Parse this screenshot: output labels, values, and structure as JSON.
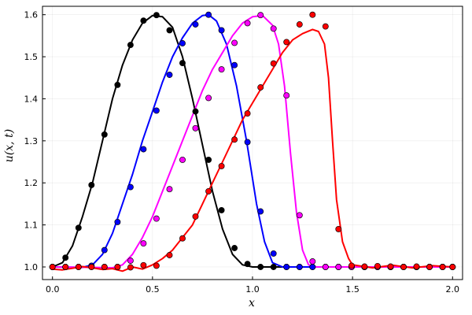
{
  "chart_data": {
    "type": "line",
    "title": "",
    "xlabel": "x",
    "ylabel": "u(x, t)",
    "xlim": [
      -0.05,
      2.05
    ],
    "ylim": [
      0.97,
      1.62
    ],
    "xticks": [
      0.0,
      0.5,
      1.0,
      1.5,
      2.0
    ],
    "xtick_labels": [
      "0.0",
      "0.5",
      "1.0",
      "1.5",
      "2.0"
    ],
    "yticks": [
      1.0,
      1.1,
      1.2,
      1.3,
      1.4,
      1.5,
      1.6
    ],
    "ytick_labels": [
      "1.0",
      "1.1",
      "1.2",
      "1.3",
      "1.4",
      "1.5",
      "1.6"
    ],
    "grid": true,
    "legend": "none",
    "series": [
      {
        "color": "#000000",
        "line": [
          [
            0.0,
            1.0
          ],
          [
            0.05,
            1.01
          ],
          [
            0.1,
            1.05
          ],
          [
            0.15,
            1.12
          ],
          [
            0.2,
            1.2
          ],
          [
            0.25,
            1.3
          ],
          [
            0.3,
            1.4
          ],
          [
            0.35,
            1.48
          ],
          [
            0.4,
            1.54
          ],
          [
            0.45,
            1.58
          ],
          [
            0.5,
            1.598
          ],
          [
            0.55,
            1.595
          ],
          [
            0.6,
            1.57
          ],
          [
            0.65,
            1.5
          ],
          [
            0.7,
            1.4
          ],
          [
            0.75,
            1.29
          ],
          [
            0.8,
            1.18
          ],
          [
            0.85,
            1.09
          ],
          [
            0.9,
            1.03
          ],
          [
            0.95,
            1.005
          ],
          [
            1.0,
            1.0
          ],
          [
            2.0,
            1.0
          ]
        ],
        "markers": [
          [
            0.0,
            1.0
          ],
          [
            0.065,
            1.022
          ],
          [
            0.13,
            1.093
          ],
          [
            0.195,
            1.195
          ],
          [
            0.26,
            1.315
          ],
          [
            0.325,
            1.433
          ],
          [
            0.39,
            1.528
          ],
          [
            0.455,
            1.586
          ],
          [
            0.52,
            1.599
          ],
          [
            0.585,
            1.563
          ],
          [
            0.65,
            1.485
          ],
          [
            0.715,
            1.37
          ],
          [
            0.78,
            1.255
          ],
          [
            0.845,
            1.135
          ],
          [
            0.91,
            1.045
          ],
          [
            0.975,
            1.007
          ],
          [
            1.04,
            1.0
          ],
          [
            1.105,
            1.0
          ],
          [
            1.17,
            1.0
          ],
          [
            1.235,
            1.0
          ],
          [
            1.3,
            1.0
          ],
          [
            1.365,
            1.0
          ],
          [
            1.43,
            1.0
          ],
          [
            1.495,
            1.0
          ],
          [
            1.56,
            1.0
          ],
          [
            1.625,
            1.0
          ],
          [
            1.69,
            1.0
          ],
          [
            1.755,
            1.0
          ],
          [
            1.82,
            1.0
          ],
          [
            1.885,
            1.0
          ],
          [
            1.95,
            1.0
          ],
          [
            2.0,
            1.0
          ]
        ]
      },
      {
        "color": "#0000ff",
        "line": [
          [
            0.0,
            1.0
          ],
          [
            0.15,
            0.999
          ],
          [
            0.2,
            1.005
          ],
          [
            0.25,
            1.03
          ],
          [
            0.3,
            1.08
          ],
          [
            0.35,
            1.15
          ],
          [
            0.4,
            1.22
          ],
          [
            0.45,
            1.3
          ],
          [
            0.5,
            1.37
          ],
          [
            0.55,
            1.44
          ],
          [
            0.6,
            1.5
          ],
          [
            0.65,
            1.545
          ],
          [
            0.7,
            1.58
          ],
          [
            0.75,
            1.598
          ],
          [
            0.78,
            1.6
          ],
          [
            0.82,
            1.585
          ],
          [
            0.87,
            1.53
          ],
          [
            0.92,
            1.43
          ],
          [
            0.97,
            1.3
          ],
          [
            1.02,
            1.15
          ],
          [
            1.06,
            1.06
          ],
          [
            1.1,
            1.01
          ],
          [
            1.15,
            1.0
          ],
          [
            2.0,
            1.0
          ]
        ],
        "markers": [
          [
            0.0,
            1.0
          ],
          [
            0.065,
            1.0
          ],
          [
            0.13,
            1.0
          ],
          [
            0.195,
            1.003
          ],
          [
            0.26,
            1.04
          ],
          [
            0.325,
            1.107
          ],
          [
            0.39,
            1.19
          ],
          [
            0.455,
            1.28
          ],
          [
            0.52,
            1.372
          ],
          [
            0.585,
            1.457
          ],
          [
            0.65,
            1.532
          ],
          [
            0.715,
            1.577
          ],
          [
            0.78,
            1.6
          ],
          [
            0.845,
            1.563
          ],
          [
            0.91,
            1.48
          ],
          [
            0.975,
            1.297
          ],
          [
            1.04,
            1.132
          ],
          [
            1.105,
            1.032
          ],
          [
            1.17,
            1.0
          ],
          [
            1.235,
            1.0
          ],
          [
            1.3,
            1.0
          ],
          [
            1.365,
            1.0
          ],
          [
            1.43,
            1.0
          ],
          [
            1.495,
            1.0
          ],
          [
            1.56,
            1.0
          ],
          [
            1.625,
            1.0
          ],
          [
            1.69,
            1.0
          ],
          [
            1.755,
            1.0
          ],
          [
            1.82,
            1.0
          ],
          [
            1.885,
            1.0
          ],
          [
            1.95,
            1.0
          ],
          [
            2.0,
            1.0
          ]
        ]
      },
      {
        "color": "#ff00ff",
        "line": [
          [
            0.0,
            1.0
          ],
          [
            0.2,
            0.999
          ],
          [
            0.3,
            0.998
          ],
          [
            0.35,
            1.005
          ],
          [
            0.4,
            1.03
          ],
          [
            0.45,
            1.07
          ],
          [
            0.5,
            1.12
          ],
          [
            0.55,
            1.18
          ],
          [
            0.6,
            1.24
          ],
          [
            0.65,
            1.3
          ],
          [
            0.7,
            1.36
          ],
          [
            0.75,
            1.42
          ],
          [
            0.8,
            1.47
          ],
          [
            0.85,
            1.51
          ],
          [
            0.9,
            1.55
          ],
          [
            0.95,
            1.58
          ],
          [
            1.0,
            1.595
          ],
          [
            1.05,
            1.598
          ],
          [
            1.1,
            1.575
          ],
          [
            1.13,
            1.53
          ],
          [
            1.16,
            1.43
          ],
          [
            1.19,
            1.27
          ],
          [
            1.22,
            1.13
          ],
          [
            1.25,
            1.04
          ],
          [
            1.28,
            1.005
          ],
          [
            1.32,
            1.0
          ],
          [
            2.0,
            1.0
          ]
        ],
        "markers": [
          [
            0.0,
            1.0
          ],
          [
            0.065,
            1.0
          ],
          [
            0.13,
            1.0
          ],
          [
            0.195,
            1.0
          ],
          [
            0.26,
            1.0
          ],
          [
            0.325,
            1.0
          ],
          [
            0.39,
            1.015
          ],
          [
            0.455,
            1.056
          ],
          [
            0.52,
            1.115
          ],
          [
            0.585,
            1.185
          ],
          [
            0.65,
            1.255
          ],
          [
            0.715,
            1.33
          ],
          [
            0.78,
            1.402
          ],
          [
            0.845,
            1.47
          ],
          [
            0.91,
            1.533
          ],
          [
            0.975,
            1.58
          ],
          [
            1.04,
            1.599
          ],
          [
            1.105,
            1.567
          ],
          [
            1.17,
            1.408
          ],
          [
            1.235,
            1.123
          ],
          [
            1.3,
            1.013
          ],
          [
            1.365,
            1.0
          ],
          [
            1.43,
            1.0
          ],
          [
            1.495,
            1.0
          ],
          [
            1.56,
            1.0
          ],
          [
            1.625,
            1.0
          ],
          [
            1.69,
            1.0
          ],
          [
            1.755,
            1.0
          ],
          [
            1.82,
            1.0
          ],
          [
            1.885,
            1.0
          ],
          [
            1.95,
            1.0
          ],
          [
            2.0,
            1.0
          ]
        ]
      },
      {
        "color": "#ff0000",
        "line": [
          [
            0.0,
            0.995
          ],
          [
            0.05,
            0.993
          ],
          [
            0.1,
            0.997
          ],
          [
            0.15,
            1.001
          ],
          [
            0.2,
            0.998
          ],
          [
            0.25,
            0.994
          ],
          [
            0.3,
            0.996
          ],
          [
            0.35,
            0.99
          ],
          [
            0.4,
            1.0
          ],
          [
            0.45,
            0.995
          ],
          [
            0.5,
            1.005
          ],
          [
            0.55,
            1.02
          ],
          [
            0.6,
            1.04
          ],
          [
            0.65,
            1.07
          ],
          [
            0.7,
            1.1
          ],
          [
            0.75,
            1.15
          ],
          [
            0.8,
            1.2
          ],
          [
            0.85,
            1.25
          ],
          [
            0.9,
            1.3
          ],
          [
            0.95,
            1.35
          ],
          [
            1.0,
            1.39
          ],
          [
            1.05,
            1.43
          ],
          [
            1.1,
            1.47
          ],
          [
            1.15,
            1.51
          ],
          [
            1.2,
            1.54
          ],
          [
            1.25,
            1.555
          ],
          [
            1.3,
            1.565
          ],
          [
            1.33,
            1.56
          ],
          [
            1.36,
            1.53
          ],
          [
            1.38,
            1.45
          ],
          [
            1.4,
            1.3
          ],
          [
            1.42,
            1.16
          ],
          [
            1.45,
            1.06
          ],
          [
            1.48,
            1.02
          ],
          [
            1.5,
            1.005
          ],
          [
            1.6,
            0.998
          ],
          [
            1.7,
            1.004
          ],
          [
            1.8,
            0.998
          ],
          [
            1.9,
            1.003
          ],
          [
            2.0,
            1.0
          ]
        ],
        "markers": [
          [
            0.0,
            1.0
          ],
          [
            0.065,
            1.0
          ],
          [
            0.13,
            1.0
          ],
          [
            0.195,
            1.0
          ],
          [
            0.26,
            1.0
          ],
          [
            0.325,
            1.0
          ],
          [
            0.39,
            0.999
          ],
          [
            0.455,
            1.004
          ],
          [
            0.52,
            1.003
          ],
          [
            0.585,
            1.028
          ],
          [
            0.65,
            1.068
          ],
          [
            0.715,
            1.12
          ],
          [
            0.78,
            1.18
          ],
          [
            0.845,
            1.24
          ],
          [
            0.91,
            1.303
          ],
          [
            0.975,
            1.365
          ],
          [
            1.04,
            1.427
          ],
          [
            1.105,
            1.484
          ],
          [
            1.17,
            1.535
          ],
          [
            1.235,
            1.577
          ],
          [
            1.3,
            1.6
          ],
          [
            1.365,
            1.572
          ],
          [
            1.43,
            1.09
          ],
          [
            1.495,
            1.003
          ],
          [
            1.56,
            1.001
          ],
          [
            1.625,
            1.002
          ],
          [
            1.69,
            1.001
          ],
          [
            1.755,
            1.0
          ],
          [
            1.82,
            1.001
          ],
          [
            1.885,
            1.0
          ],
          [
            1.95,
            1.0
          ],
          [
            2.0,
            1.0
          ]
        ]
      }
    ]
  }
}
